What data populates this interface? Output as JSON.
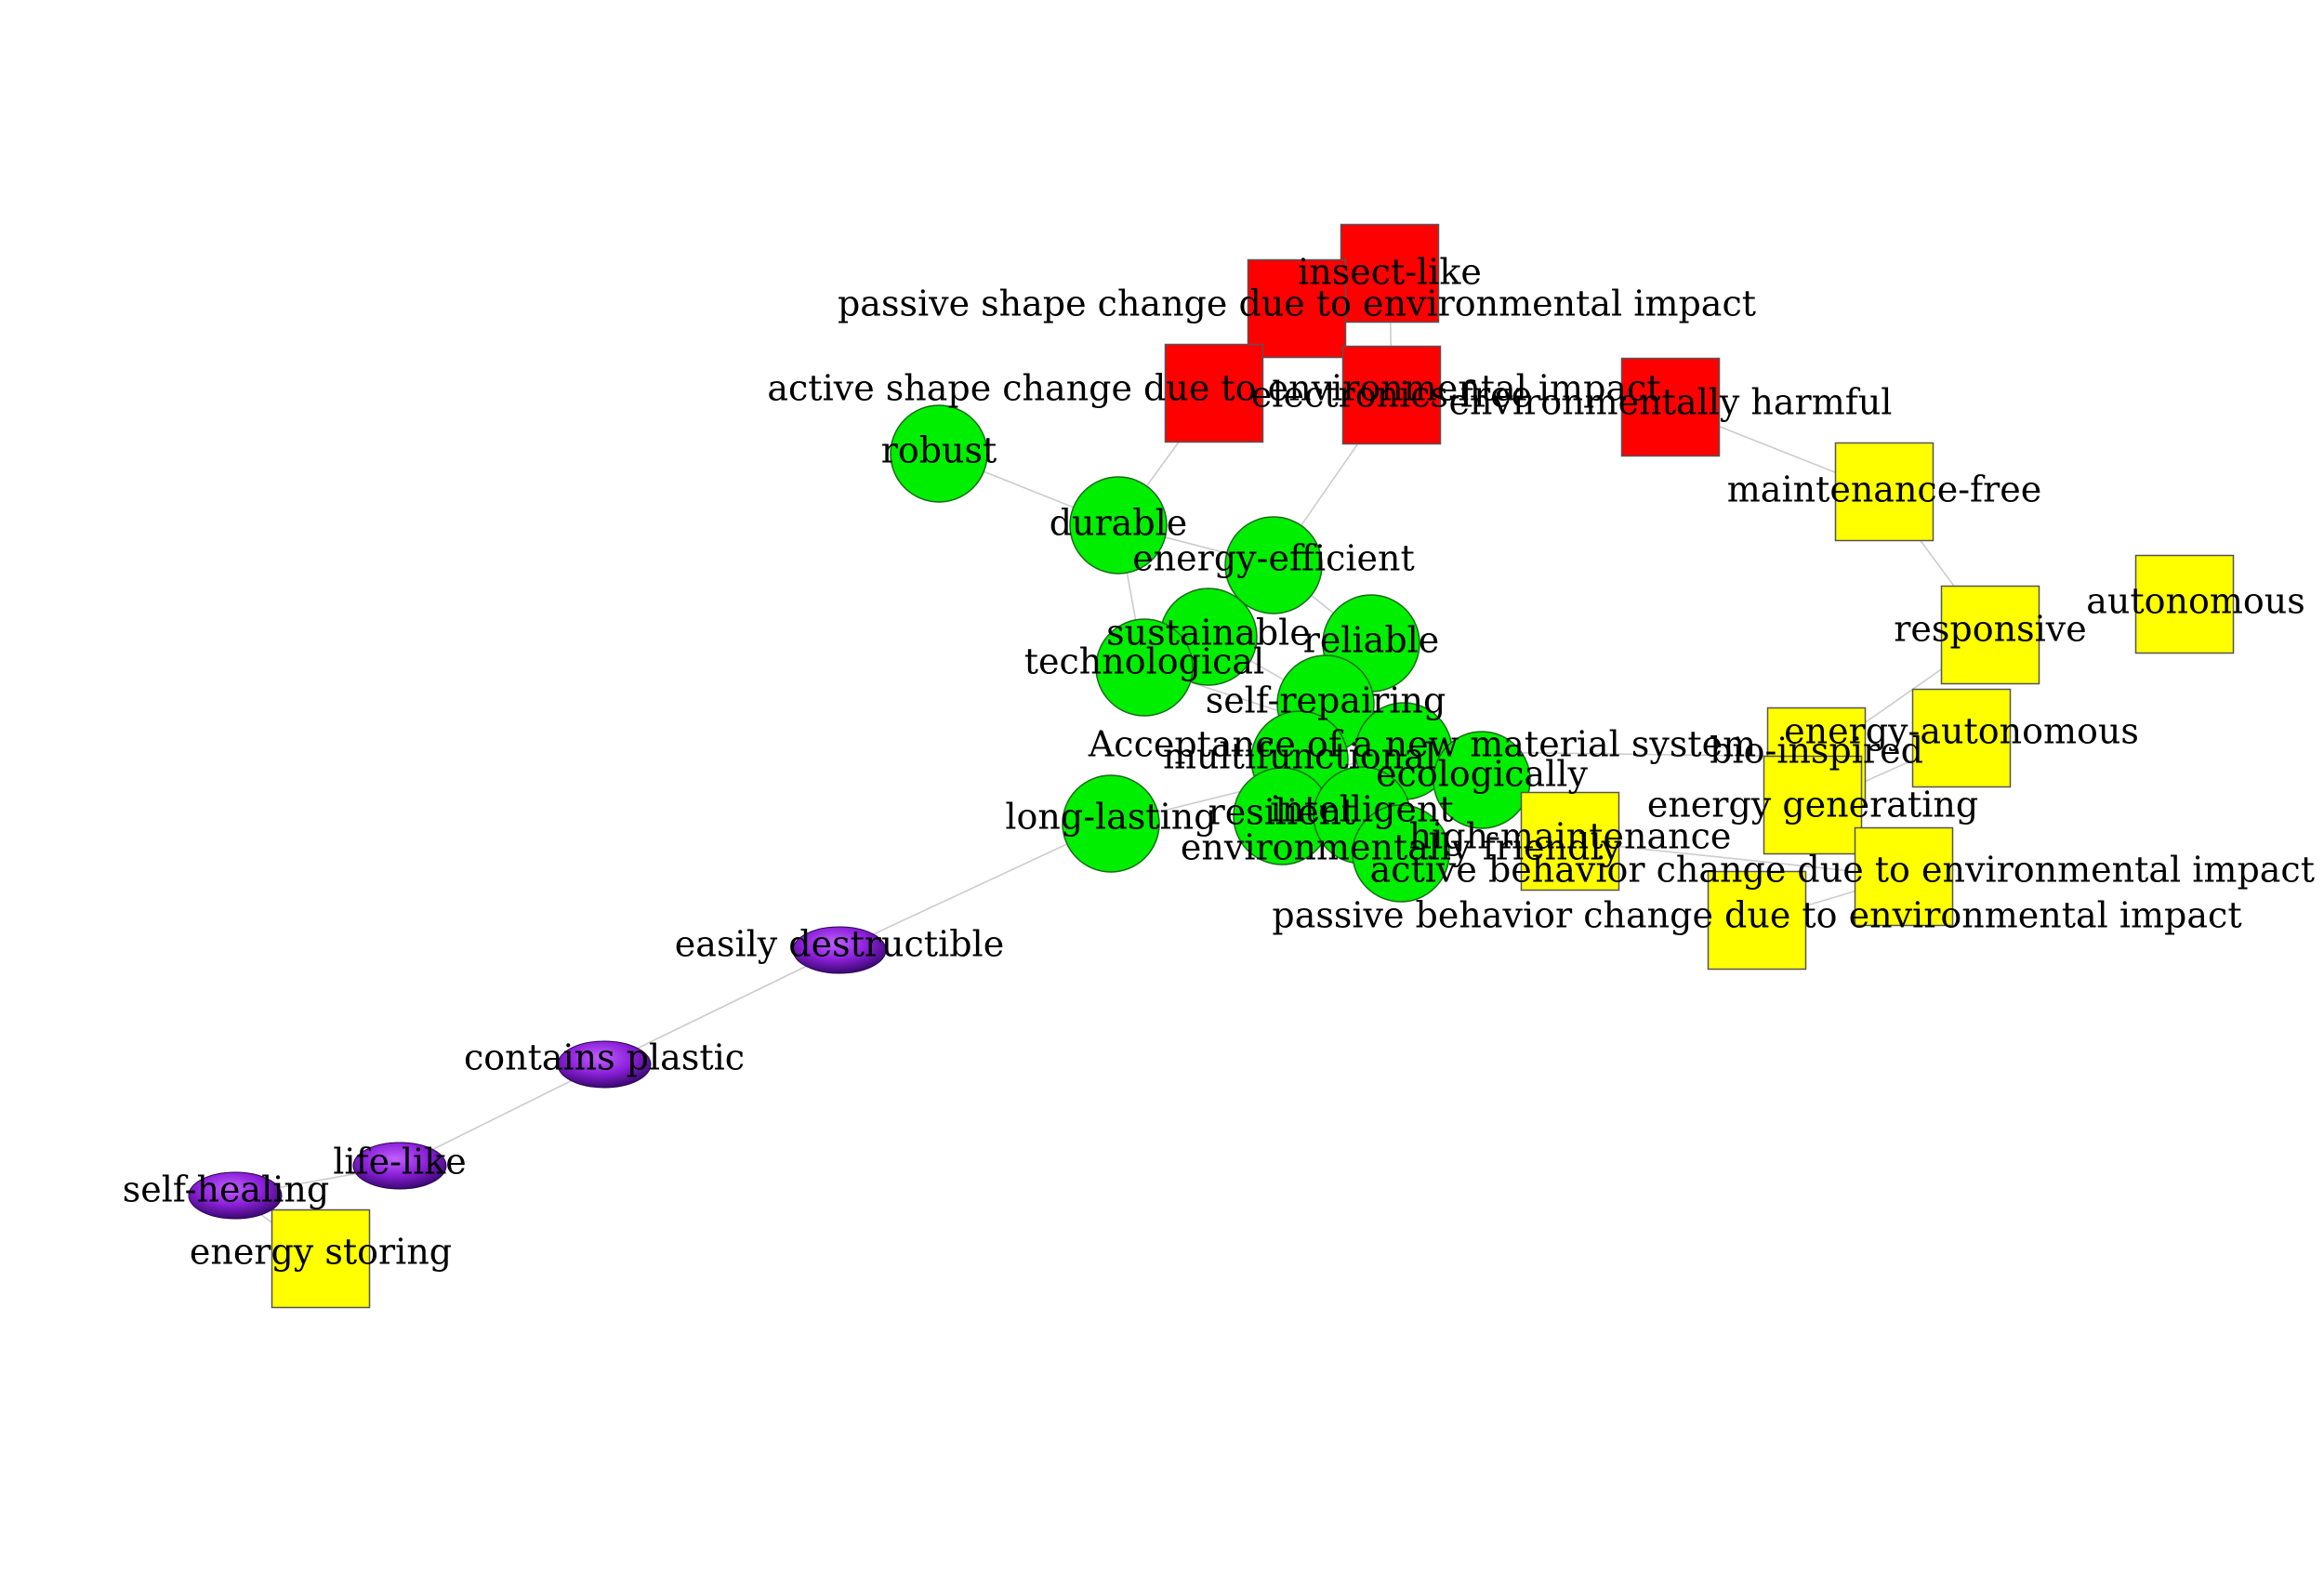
{
  "diagram": {
    "groups": {
      "green": {
        "shape": "circle",
        "fill": "#00ee00"
      },
      "red": {
        "shape": "square",
        "fill": "#ff0000"
      },
      "yellow": {
        "shape": "square",
        "fill": "#ffff00"
      },
      "purple": {
        "shape": "ellipse",
        "fill": "#7a1fc8"
      }
    },
    "edge_color": "#cccccc",
    "nodes": [
      {
        "id": "insect",
        "label": "insect-like",
        "group": "red"
      },
      {
        "id": "passive_shape",
        "label": "passive shape change due to environmental impact",
        "group": "red"
      },
      {
        "id": "active_shape",
        "label": "active shape change due to environmental impact",
        "group": "red"
      },
      {
        "id": "electronics",
        "label": "electronics-free",
        "group": "red"
      },
      {
        "id": "env_harmful",
        "label": "environmentally harmful",
        "group": "red"
      },
      {
        "id": "robust",
        "label": "robust",
        "group": "green"
      },
      {
        "id": "durable",
        "label": "durable",
        "group": "green"
      },
      {
        "id": "energy_efficient",
        "label": "energy-efficient",
        "group": "green"
      },
      {
        "id": "sustainable",
        "label": "sustainable",
        "group": "green"
      },
      {
        "id": "reliable",
        "label": "reliable",
        "group": "green"
      },
      {
        "id": "technological",
        "label": "technological",
        "group": "green"
      },
      {
        "id": "self_repairing",
        "label": "self-repairing",
        "group": "green"
      },
      {
        "id": "acceptance",
        "label": "Acceptance of a new material system",
        "group": "green"
      },
      {
        "id": "multifunctional",
        "label": "multifunctional",
        "group": "green"
      },
      {
        "id": "ecologically",
        "label": "ecologically",
        "group": "green"
      },
      {
        "id": "resilient",
        "label": "resilient",
        "group": "green"
      },
      {
        "id": "intelligent",
        "label": "intelligent",
        "group": "green"
      },
      {
        "id": "env_friendly",
        "label": "environmentally friendly",
        "group": "green"
      },
      {
        "id": "long_lasting",
        "label": "long-lasting",
        "group": "green"
      },
      {
        "id": "maintenance_free",
        "label": "maintenance-free",
        "group": "yellow"
      },
      {
        "id": "autonomous",
        "label": "autonomous",
        "group": "yellow"
      },
      {
        "id": "responsive",
        "label": "responsive",
        "group": "yellow"
      },
      {
        "id": "energy_autonomous",
        "label": "energy-autonomous",
        "group": "yellow"
      },
      {
        "id": "bio_inspired",
        "label": "bio-inspired",
        "group": "yellow"
      },
      {
        "id": "energy_generating",
        "label": "energy generating",
        "group": "yellow"
      },
      {
        "id": "high_maintenance",
        "label": "high-maintenance",
        "group": "yellow"
      },
      {
        "id": "active_behavior",
        "label": "active behavior change due to environmental impact",
        "group": "yellow"
      },
      {
        "id": "passive_behavior",
        "label": "passive behavior change due to environmental impact",
        "group": "yellow"
      },
      {
        "id": "energy_storing",
        "label": "energy storing",
        "group": "yellow"
      },
      {
        "id": "easily_destructible",
        "label": "easily destructible",
        "group": "purple"
      },
      {
        "id": "contains_plastic",
        "label": "contains plastic",
        "group": "purple"
      },
      {
        "id": "life_like",
        "label": "life-like",
        "group": "purple"
      },
      {
        "id": "self_healing",
        "label": "self-healing",
        "group": "purple"
      }
    ],
    "edges": [
      [
        "insect",
        "passive_shape"
      ],
      [
        "insect",
        "electronics"
      ],
      [
        "passive_shape",
        "electronics"
      ],
      [
        "active_shape",
        "durable"
      ],
      [
        "electronics",
        "energy_efficient"
      ],
      [
        "env_harmful",
        "maintenance_free"
      ],
      [
        "maintenance_free",
        "responsive"
      ],
      [
        "responsive",
        "bio_inspired"
      ],
      [
        "energy_autonomous",
        "energy_generating"
      ],
      [
        "robust",
        "durable"
      ],
      [
        "durable",
        "technological"
      ],
      [
        "durable",
        "energy_efficient"
      ],
      [
        "energy_efficient",
        "reliable"
      ],
      [
        "sustainable",
        "self_repairing"
      ],
      [
        "technological",
        "acceptance"
      ],
      [
        "acceptance",
        "bio_inspired"
      ],
      [
        "acceptance",
        "long_lasting"
      ],
      [
        "long_lasting",
        "easily_destructible"
      ],
      [
        "easily_destructible",
        "contains_plastic"
      ],
      [
        "contains_plastic",
        "life_like"
      ],
      [
        "life_like",
        "self_healing"
      ],
      [
        "self_healing",
        "energy_storing"
      ],
      [
        "active_behavior",
        "passive_behavior"
      ],
      [
        "high_maintenance",
        "active_behavior"
      ]
    ]
  }
}
